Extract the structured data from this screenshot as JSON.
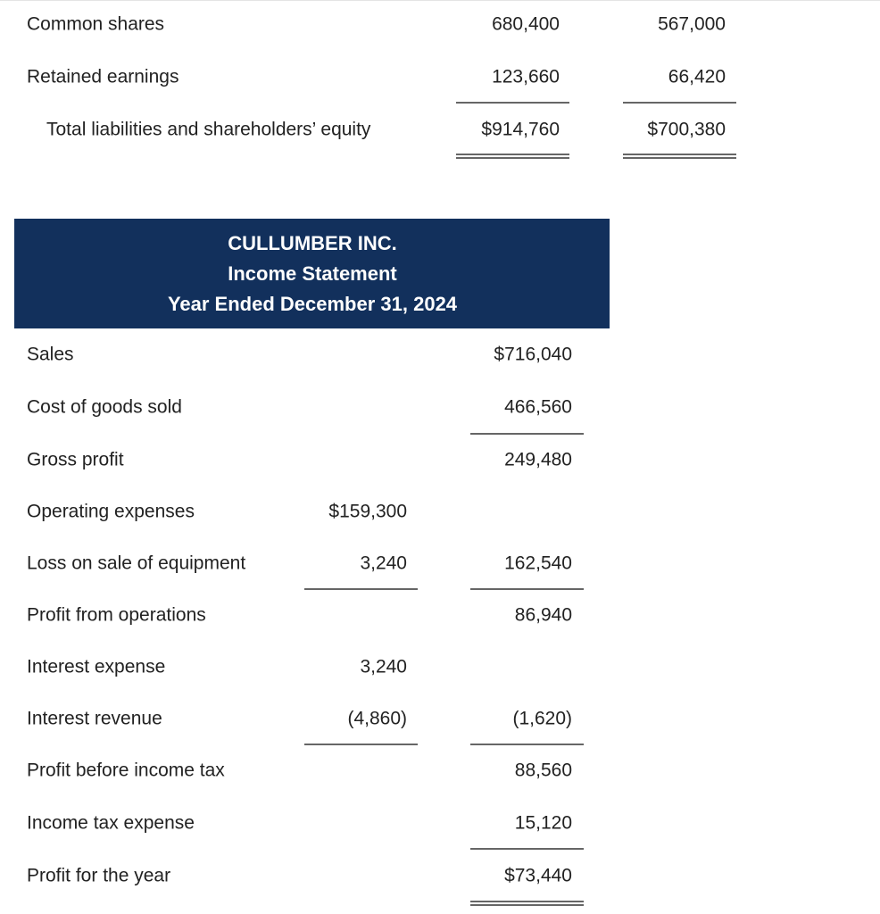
{
  "balance_sheet": {
    "rows": [
      {
        "label": "Common shares",
        "current": "680,400",
        "prior": "567,000"
      },
      {
        "label": "Retained earnings",
        "current": "123,660",
        "prior": "66,420"
      },
      {
        "label": "Total liabilities and shareholders’ equity",
        "current": "$914,760",
        "prior": "$700,380"
      }
    ]
  },
  "income_statement": {
    "header": {
      "company": "CULLUMBER INC.",
      "title": "Income Statement",
      "period": "Year Ended December 31, 2024"
    },
    "rows": [
      {
        "label": "Sales",
        "outer": "$716,040"
      },
      {
        "label": "Cost of goods sold",
        "outer": "466,560"
      },
      {
        "label": "Gross profit",
        "outer": "249,480"
      },
      {
        "label": "Operating expenses",
        "inner": "$159,300"
      },
      {
        "label": "Loss on sale of equipment",
        "inner": "3,240",
        "outer": "162,540"
      },
      {
        "label": "Profit from operations",
        "outer": "86,940"
      },
      {
        "label": "Interest expense",
        "inner": "3,240"
      },
      {
        "label": "Interest revenue",
        "inner": "(4,860)",
        "outer": "(1,620)"
      },
      {
        "label": "Profit before income tax",
        "outer": "88,560"
      },
      {
        "label": "Income tax expense",
        "outer": "15,120"
      },
      {
        "label": "Profit for the year",
        "outer": "$73,440"
      }
    ]
  }
}
